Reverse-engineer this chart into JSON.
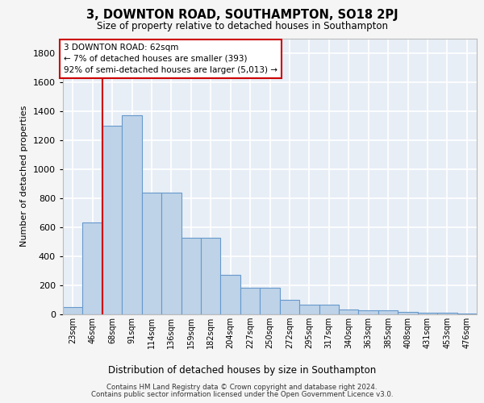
{
  "title": "3, DOWNTON ROAD, SOUTHAMPTON, SO18 2PJ",
  "subtitle": "Size of property relative to detached houses in Southampton",
  "xlabel": "Distribution of detached houses by size in Southampton",
  "ylabel": "Number of detached properties",
  "categories": [
    "23sqm",
    "46sqm",
    "68sqm",
    "91sqm",
    "114sqm",
    "136sqm",
    "159sqm",
    "182sqm",
    "204sqm",
    "227sqm",
    "250sqm",
    "272sqm",
    "295sqm",
    "317sqm",
    "340sqm",
    "363sqm",
    "385sqm",
    "408sqm",
    "431sqm",
    "453sqm",
    "476sqm"
  ],
  "values": [
    50,
    630,
    1300,
    1370,
    840,
    840,
    525,
    525,
    270,
    185,
    185,
    100,
    65,
    65,
    35,
    30,
    30,
    18,
    10,
    10,
    8
  ],
  "bar_color": "#bed3e8",
  "bar_edge_color": "#6699cc",
  "background_color": "#e8eef6",
  "grid_color": "#ffffff",
  "vline_color": "#cc0000",
  "annotation_line1": "3 DOWNTON ROAD: 62sqm",
  "annotation_line2": "← 7% of detached houses are smaller (393)",
  "annotation_line3": "92% of semi-detached houses are larger (5,013) →",
  "annotation_box_color": "#ffffff",
  "annotation_box_edge": "#cc0000",
  "ylim": [
    0,
    1900
  ],
  "yticks": [
    0,
    200,
    400,
    600,
    800,
    1000,
    1200,
    1400,
    1600,
    1800
  ],
  "footer_line1": "Contains HM Land Registry data © Crown copyright and database right 2024.",
  "footer_line2": "Contains public sector information licensed under the Open Government Licence v3.0."
}
